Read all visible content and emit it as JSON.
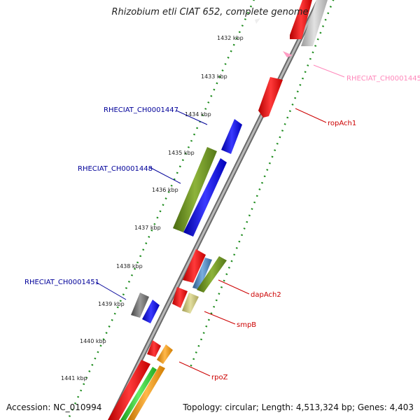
{
  "title": "Rhizobium etli CIAT 652, complete genome",
  "accession": "Accession: NC_010994",
  "topology": "Topology: circular; Length: 4,513,324 bp; Genes: 4,403",
  "ruler_labels": [
    "1432 kbp",
    "1433 kbp",
    "1434 kbp",
    "1435 kbp",
    "1436 kbp",
    "1437 kbp",
    "1438 kbp",
    "1439 kbp",
    "1440 kbp",
    "1441 kbp"
  ],
  "gene_labels": {
    "rheciat_ch0001445": "RHECIAT_CH0001445",
    "ropach1": "ropAch1",
    "rheciat_ch0001447": "RHECIAT_CH0001447",
    "rheciat_ch0001448": "RHECIAT_CH0001448",
    "dapach2": "dapAch2",
    "smpb": "smpB",
    "rheciat_ch0001451": "RHECIAT_CH0001451",
    "rpoz": "rpoZ"
  },
  "colors": {
    "backbone": "#8c8c8c",
    "ruler_dots": "#1e8c1e",
    "gene_red": "#ee1111",
    "gene_blue": "#1111ee",
    "gene_olive": "#6b8f23",
    "gene_gray": "#6e6e6e",
    "gene_steel": "#4a7fb5",
    "gene_khaki": "#c8c47a",
    "gene_orange": "#f39c12",
    "gene_lime": "#33cc33",
    "gene_pink": "#ff9ec4",
    "label_red": "#cc0000",
    "label_blue": "#000099",
    "label_pink": "#ff88bb"
  }
}
